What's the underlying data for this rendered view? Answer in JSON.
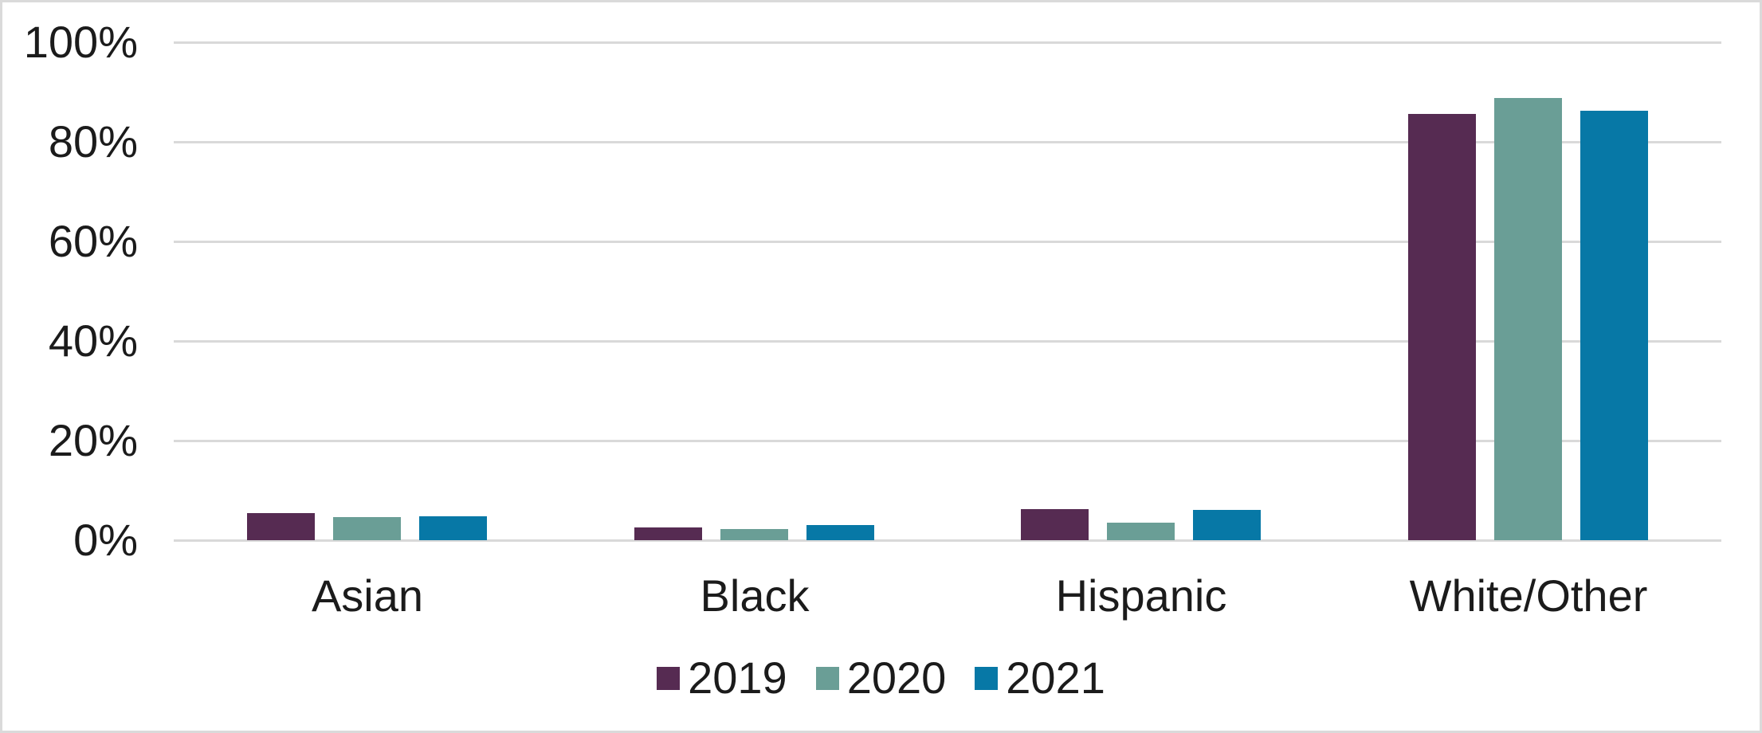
{
  "chart_data": {
    "type": "bar",
    "title": "",
    "xlabel": "",
    "ylabel": "",
    "categories": [
      "Asian",
      "Black",
      "Hispanic",
      "White/Other"
    ],
    "series": [
      {
        "name": "2019",
        "color": "#562B52",
        "values": [
          5.4,
          2.6,
          6.2,
          85.6
        ]
      },
      {
        "name": "2020",
        "color": "#6A9E96",
        "values": [
          4.6,
          2.3,
          3.5,
          88.8
        ]
      },
      {
        "name": "2021",
        "color": "#0778A6",
        "values": [
          4.8,
          3.0,
          6.1,
          86.2
        ]
      }
    ],
    "ylim": [
      0,
      100
    ],
    "yticks": [
      {
        "label": "0%",
        "value": 0
      },
      {
        "label": "20%",
        "value": 20
      },
      {
        "label": "40%",
        "value": 40
      },
      {
        "label": "60%",
        "value": 60
      },
      {
        "label": "80%",
        "value": 80
      },
      {
        "label": "100%",
        "value": 100
      }
    ],
    "grid": true,
    "legend_position": "bottom"
  },
  "styles": {
    "background": "#FFFFFF",
    "grid_color": "#D9D9D9",
    "border_color": "#DADADA",
    "text_color": "#1B1B1B"
  }
}
